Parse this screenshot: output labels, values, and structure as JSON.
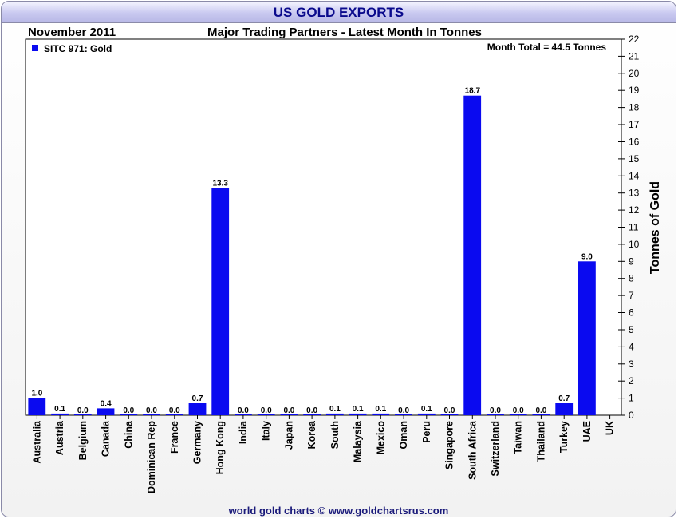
{
  "header": {
    "title": "US GOLD EXPORTS",
    "date": "November 2011",
    "subtitle": "Major Trading Partners - Latest Month In Tonnes"
  },
  "footer": "world gold charts © www.goldchartsrus.com",
  "chart_data": {
    "type": "bar",
    "categories": [
      "Australia",
      "Austria",
      "Belgium",
      "Canada",
      "China",
      "Dominican Rep",
      "France",
      "Germany",
      "Hong Kong",
      "India",
      "Italy",
      "Japan",
      "Korea",
      "South",
      "Malaysia",
      "Mexico",
      "Oman",
      "Peru",
      "Singapore",
      "South Africa",
      "Switzerland",
      "Taiwan",
      "Thailand",
      "Turkey",
      "UAE",
      "UK"
    ],
    "series": [
      {
        "name": "SITC 971: Gold",
        "values": [
          1.0,
          0.1,
          0.0,
          0.4,
          0.0,
          0.0,
          0.0,
          0.7,
          13.3,
          0.0,
          0.0,
          0.0,
          0.0,
          0.1,
          0.1,
          0.1,
          0.0,
          0.1,
          0.0,
          18.7,
          0.0,
          0.0,
          0.0,
          0.7,
          9.0,
          null
        ],
        "labels": [
          "1.0",
          "0.1",
          "0.0",
          "0.4",
          "0.0",
          "0.0",
          "0.0",
          "0.7",
          "13.3",
          "0.0",
          "0.0",
          "0.0",
          "0.0",
          "0.1",
          "0.1",
          "0.1",
          "0.0",
          "0.1",
          "0.0",
          "18.7",
          "0.0",
          "0.0",
          "0.0",
          "0.7",
          "9.0",
          ""
        ]
      }
    ],
    "ylabel": "Tonnes of Gold",
    "ylim": [
      0,
      22
    ],
    "yticks": [
      "0",
      "1",
      "2",
      "3",
      "4",
      "5",
      "6",
      "7",
      "8",
      "9",
      "10",
      "11",
      "12",
      "13",
      "14",
      "15",
      "16",
      "17",
      "18",
      "19",
      "20",
      "21",
      "22"
    ],
    "annotation": "Month Total = 44.5 Tonnes",
    "legend_position": "top-left",
    "grid": false,
    "colors": {
      "bar": "#0a0af0"
    }
  }
}
